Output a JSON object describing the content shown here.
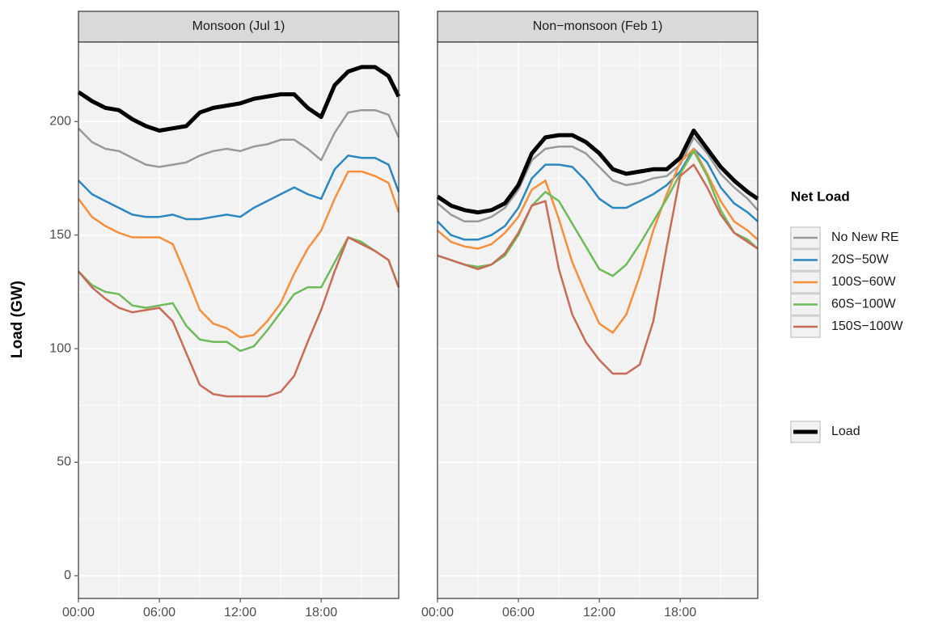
{
  "chart_data": [
    {
      "type": "line",
      "title": "Monsoon (Jul 1)",
      "y_label": "Load (GW)",
      "legend_title": "Net Load",
      "x": [
        0,
        1,
        2,
        3,
        4,
        5,
        6,
        7,
        8,
        9,
        10,
        11,
        12,
        13,
        14,
        15,
        16,
        17,
        18,
        19,
        20,
        21,
        22,
        23,
        23.75
      ],
      "xlim": [
        0,
        23.75
      ],
      "xticks": [
        {
          "value": 0,
          "label": "00:00"
        },
        {
          "value": 6,
          "label": "06:00"
        },
        {
          "value": 12,
          "label": "12:00"
        },
        {
          "value": 18,
          "label": "18:00"
        }
      ],
      "ylim": [
        -10,
        235
      ],
      "yticks": [
        0,
        50,
        100,
        150,
        200
      ],
      "grid": true,
      "series": [
        {
          "name": "No New RE",
          "color": "#999999",
          "linewidth": 2.5,
          "values": [
            197,
            191,
            188,
            187,
            184,
            181,
            180,
            181,
            182,
            185,
            187,
            188,
            187,
            189,
            190,
            192,
            192,
            188,
            183,
            195,
            204,
            205,
            205,
            203,
            193
          ]
        },
        {
          "name": "20S−50W",
          "color": "#2b87c0",
          "linewidth": 2.5,
          "values": [
            174,
            168,
            165,
            162,
            159,
            158,
            158,
            159,
            157,
            157,
            158,
            159,
            158,
            162,
            165,
            168,
            171,
            168,
            166,
            179,
            185,
            184,
            184,
            181,
            169
          ]
        },
        {
          "name": "100S−60W",
          "color": "#f78f3a",
          "linewidth": 2.5,
          "values": [
            166,
            158,
            154,
            151,
            149,
            149,
            149,
            146,
            132,
            117,
            111,
            109,
            105,
            106,
            112,
            120,
            133,
            144,
            152,
            166,
            178,
            178,
            176,
            173,
            160
          ]
        },
        {
          "name": "60S−100W",
          "color": "#6dbb5b",
          "linewidth": 2.5,
          "values": [
            134,
            128,
            125,
            124,
            119,
            118,
            119,
            120,
            110,
            104,
            103,
            103,
            99,
            101,
            108,
            116,
            124,
            127,
            127,
            138,
            149,
            147,
            143,
            139,
            127
          ]
        },
        {
          "name": "150S−100W",
          "color": "#c96b55",
          "linewidth": 2.5,
          "values": [
            134,
            127,
            122,
            118,
            116,
            117,
            118,
            112,
            98,
            84,
            80,
            79,
            79,
            79,
            79,
            81,
            88,
            103,
            117,
            134,
            149,
            146,
            143,
            139,
            127
          ]
        },
        {
          "name": "Load",
          "color": "#000000",
          "linewidth": 5,
          "values": [
            213,
            209,
            206,
            205,
            201,
            198,
            196,
            197,
            198,
            204,
            206,
            207,
            208,
            210,
            211,
            212,
            212,
            206,
            202,
            216,
            222,
            224,
            224,
            220,
            211
          ]
        }
      ]
    },
    {
      "type": "line",
      "title": "Non−monsoon (Feb 1)",
      "x": [
        0,
        1,
        2,
        3,
        4,
        5,
        6,
        7,
        8,
        9,
        10,
        11,
        12,
        13,
        14,
        15,
        16,
        17,
        18,
        19,
        20,
        21,
        22,
        23,
        23.75
      ],
      "xlim": [
        0,
        23.75
      ],
      "xticks": [
        {
          "value": 0,
          "label": "00:00"
        },
        {
          "value": 6,
          "label": "06:00"
        },
        {
          "value": 12,
          "label": "12:00"
        },
        {
          "value": 18,
          "label": "18:00"
        }
      ],
      "ylim": [
        -10,
        235
      ],
      "yticks": [
        0,
        50,
        100,
        150,
        200
      ],
      "grid": true,
      "series": [
        {
          "color": "#999999",
          "linewidth": 2.5,
          "values": [
            164,
            159,
            156,
            156,
            158,
            162,
            170,
            183,
            188,
            189,
            189,
            186,
            180,
            174,
            172,
            173,
            175,
            176,
            181,
            193,
            186,
            177,
            171,
            166,
            161
          ]
        },
        {
          "color": "#2b87c0",
          "linewidth": 2.5,
          "values": [
            156,
            150,
            148,
            148,
            150,
            154,
            162,
            175,
            181,
            181,
            180,
            174,
            166,
            162,
            162,
            165,
            168,
            172,
            178,
            188,
            182,
            171,
            164,
            160,
            156
          ]
        },
        {
          "color": "#f78f3a",
          "linewidth": 2.5,
          "values": [
            152,
            147,
            145,
            144,
            146,
            151,
            158,
            170,
            174,
            157,
            138,
            124,
            111,
            107,
            115,
            132,
            152,
            168,
            182,
            188,
            177,
            165,
            156,
            152,
            148
          ]
        },
        {
          "color": "#6dbb5b",
          "linewidth": 2.5,
          "values": [
            141,
            139,
            137,
            136,
            137,
            141,
            150,
            163,
            169,
            165,
            155,
            145,
            135,
            132,
            137,
            146,
            156,
            166,
            177,
            187,
            176,
            161,
            151,
            148,
            144
          ]
        },
        {
          "color": "#c96b55",
          "linewidth": 2.5,
          "values": [
            141,
            139,
            137,
            135,
            137,
            142,
            151,
            163,
            165,
            135,
            115,
            103,
            95,
            89,
            89,
            93,
            112,
            145,
            176,
            181,
            171,
            159,
            151,
            147,
            144
          ]
        },
        {
          "color": "#000000",
          "linewidth": 5,
          "values": [
            167,
            163,
            161,
            160,
            161,
            164,
            172,
            186,
            193,
            194,
            194,
            191,
            186,
            179,
            177,
            178,
            179,
            179,
            184,
            196,
            188,
            180,
            174,
            169,
            166
          ]
        }
      ]
    }
  ]
}
